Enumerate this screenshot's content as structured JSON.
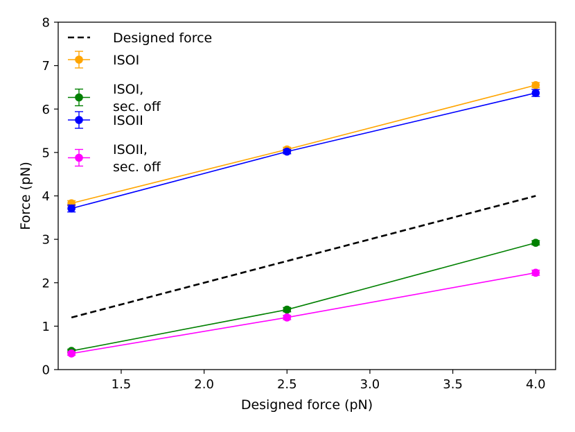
{
  "chart_data": {
    "type": "line",
    "title": "",
    "xlabel": "Designed force (pN)",
    "ylabel": "Force (pN)",
    "xlim": [
      1.12,
      4.12
    ],
    "ylim": [
      0,
      8
    ],
    "xticks": [
      1.5,
      2.0,
      2.5,
      3.0,
      3.5,
      4.0
    ],
    "xtick_labels": [
      "1.5",
      "2.0",
      "2.5",
      "3.0",
      "3.5",
      "4.0"
    ],
    "yticks": [
      0,
      1,
      2,
      3,
      4,
      5,
      6,
      7,
      8
    ],
    "ytick_labels": [
      "0",
      "1",
      "2",
      "3",
      "4",
      "5",
      "6",
      "7",
      "8"
    ],
    "grid": false,
    "legend_position": "top-left",
    "x": [
      1.2,
      2.5,
      4.0
    ],
    "series": [
      {
        "name": "Designed force",
        "values": [
          1.2,
          2.5,
          4.0
        ],
        "errors": null,
        "color": "#000000",
        "dashed": true,
        "markers": false
      },
      {
        "name": "ISOI",
        "values": [
          3.83,
          5.07,
          6.55
        ],
        "errors": [
          0.06,
          0.05,
          0.06
        ],
        "color": "#FFA500",
        "dashed": false,
        "markers": true
      },
      {
        "name": "ISOI,\nsec. off",
        "values": [
          0.43,
          1.38,
          2.92
        ],
        "errors": [
          0.04,
          0.05,
          0.05
        ],
        "color": "#008000",
        "dashed": false,
        "markers": true
      },
      {
        "name": "ISOII",
        "values": [
          3.71,
          5.02,
          6.37
        ],
        "errors": [
          0.08,
          0.05,
          0.08
        ],
        "color": "#0000FF",
        "dashed": false,
        "markers": true
      },
      {
        "name": "ISOII,\nsec. off",
        "values": [
          0.37,
          1.2,
          2.23
        ],
        "errors": [
          0.04,
          0.05,
          0.06
        ],
        "color": "#FF00FF",
        "dashed": false,
        "markers": true
      }
    ]
  }
}
